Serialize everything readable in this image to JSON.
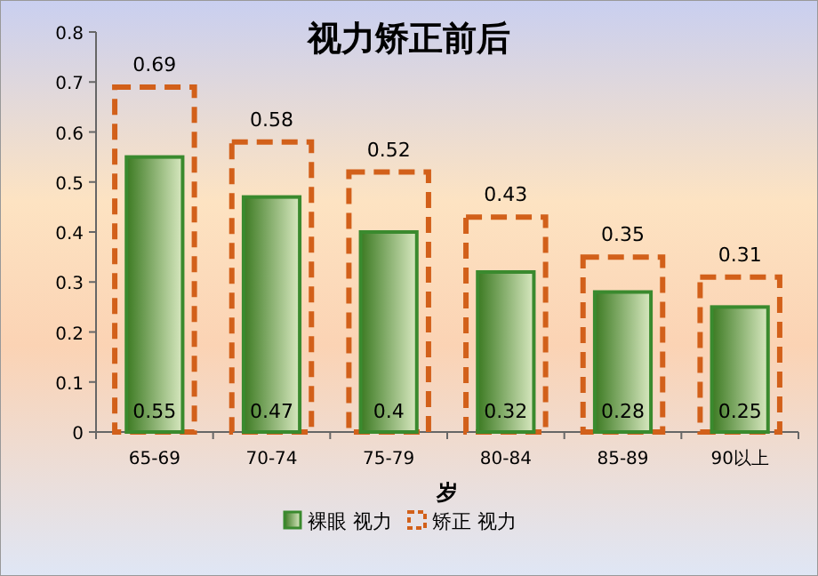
{
  "chart_data": {
    "type": "bar",
    "title": "视力矫正前后",
    "xlabel": "岁",
    "categories": [
      "65-69",
      "70-74",
      "75-79",
      "80-84",
      "85-89",
      "90以上"
    ],
    "series": [
      {
        "name": "裸眼 视力",
        "color": "#3a8a2e",
        "values": [
          0.55,
          0.47,
          0.4,
          0.32,
          0.28,
          0.25
        ]
      },
      {
        "name": "矫正 视力",
        "color": "#d2601a",
        "line_style": "dashed",
        "values": [
          0.69,
          0.58,
          0.52,
          0.43,
          0.35,
          0.31
        ]
      }
    ],
    "ylim": [
      0,
      0.8
    ],
    "yticks": [
      0,
      0.1,
      0.2,
      0.3,
      0.4,
      0.5,
      0.6,
      0.7,
      0.8
    ],
    "data_labels": true,
    "legend": "bottom",
    "grid": false
  }
}
